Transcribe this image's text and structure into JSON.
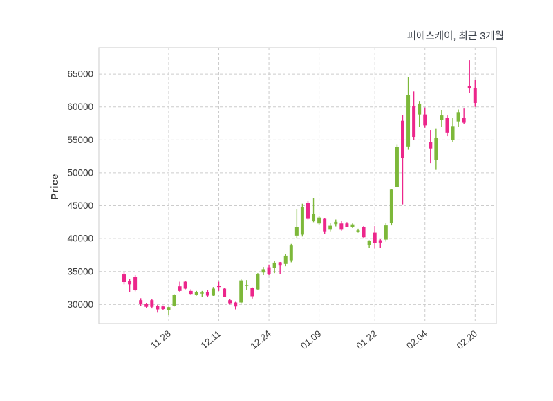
{
  "chart_data": {
    "type": "candlestick",
    "title": "피에스케이, 최근 3개월",
    "ylabel": "Price",
    "xlabel": "",
    "grid": "dashed",
    "legend_position": "none",
    "y_ticks": [
      30000,
      35000,
      40000,
      45000,
      50000,
      55000,
      60000,
      65000
    ],
    "y_range": [
      27100,
      69000
    ],
    "x_tick_labels": [
      "11.28",
      "12.11",
      "12.24",
      "01.09",
      "01.22",
      "02.04",
      "02.20"
    ],
    "x_tick_indices": [
      8,
      17,
      26,
      35,
      45,
      54,
      63
    ],
    "colors": {
      "up": "#7db83a",
      "down": "#ec268b",
      "grid": "#cccccc",
      "plot_border": "#d4d4d4",
      "tick_label": "#3b3b3b",
      "title": "#3d434c",
      "background": "#ffffff"
    },
    "ohlc_order": [
      "open",
      "high",
      "low",
      "close"
    ],
    "candles": [
      [
        34550,
        34900,
        33050,
        33400
      ],
      [
        33600,
        33900,
        31850,
        33050
      ],
      [
        34200,
        34450,
        32000,
        32200
      ],
      [
        30650,
        30950,
        29800,
        30100
      ],
      [
        30100,
        30250,
        29500,
        29650
      ],
      [
        30650,
        30850,
        29400,
        29650
      ],
      [
        29800,
        29950,
        28850,
        29250
      ],
      [
        29700,
        29850,
        29100,
        29300
      ],
      [
        29200,
        29650,
        28350,
        29600
      ],
      [
        29800,
        31550,
        29700,
        31450
      ],
      [
        32750,
        33450,
        31850,
        32050
      ],
      [
        33450,
        33600,
        32300,
        32400
      ],
      [
        32050,
        32300,
        31450,
        31600
      ],
      [
        31500,
        32050,
        31350,
        31850
      ],
      [
        31650,
        32050,
        31150,
        31800
      ],
      [
        31850,
        32200,
        31150,
        31350
      ],
      [
        31350,
        32650,
        31300,
        32400
      ],
      [
        32800,
        33450,
        32050,
        32650
      ],
      [
        32400,
        32500,
        31100,
        31150
      ],
      [
        30650,
        30800,
        30000,
        30200
      ],
      [
        30300,
        30400,
        29250,
        29700
      ],
      [
        30300,
        33800,
        30200,
        33650
      ],
      [
        32800,
        33700,
        32150,
        32950
      ],
      [
        32550,
        32600,
        30900,
        31250
      ],
      [
        32300,
        34750,
        32200,
        34600
      ],
      [
        34850,
        35700,
        34450,
        35350
      ],
      [
        35650,
        36050,
        34450,
        34600
      ],
      [
        35550,
        36550,
        34750,
        36350
      ],
      [
        36400,
        36450,
        34600,
        35900
      ],
      [
        36150,
        37650,
        35800,
        37400
      ],
      [
        36700,
        39200,
        36400,
        38950
      ],
      [
        40450,
        44500,
        40100,
        41800
      ],
      [
        40600,
        45300,
        40300,
        44800
      ],
      [
        45450,
        45800,
        42900,
        43000
      ],
      [
        42650,
        46150,
        42500,
        43700
      ],
      [
        42300,
        43400,
        42100,
        43200
      ],
      [
        43000,
        43100,
        40750,
        41100
      ],
      [
        41450,
        42350,
        41100,
        41950
      ],
      [
        42200,
        42900,
        41850,
        42550
      ],
      [
        42300,
        42650,
        41200,
        41450
      ],
      [
        42300,
        42500,
        41700,
        41800
      ],
      [
        41800,
        42300,
        41600,
        42150
      ],
      [
        41050,
        41500,
        40900,
        41250
      ],
      [
        41800,
        41900,
        40100,
        40200
      ],
      [
        39000,
        39750,
        38650,
        39700
      ],
      [
        40900,
        41900,
        38500,
        39350
      ],
      [
        39750,
        39900,
        38650,
        39400
      ],
      [
        39850,
        42350,
        39550,
        42000
      ],
      [
        42400,
        47500,
        42000,
        47450
      ],
      [
        47850,
        54250,
        47800,
        53950
      ],
      [
        57900,
        58800,
        45200,
        52300
      ],
      [
        54000,
        64500,
        53500,
        61800
      ],
      [
        60150,
        62350,
        55000,
        55450
      ],
      [
        58850,
        60900,
        57000,
        60500
      ],
      [
        58850,
        59900,
        56850,
        57200
      ],
      [
        54700,
        56500,
        51450,
        53700
      ],
      [
        51900,
        56750,
        50450,
        55350
      ],
      [
        58000,
        59550,
        56950,
        58700
      ],
      [
        58300,
        58700,
        55550,
        56100
      ],
      [
        55000,
        58350,
        54650,
        57100
      ],
      [
        57800,
        59600,
        57000,
        59200
      ],
      [
        58300,
        59850,
        57400,
        57600
      ],
      [
        63150,
        67100,
        62100,
        62800
      ],
      [
        62850,
        64100,
        60000,
        60600
      ]
    ]
  }
}
